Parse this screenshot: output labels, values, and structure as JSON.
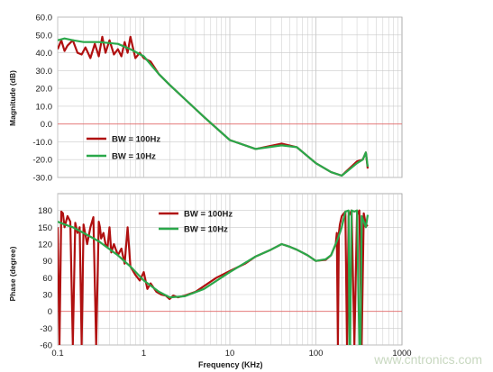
{
  "colors": {
    "series1": "#b01010",
    "series2": "#2aa84a",
    "grid": "#c9c9c9",
    "zero_line": "#e06666"
  },
  "watermark": "www.cntronics.com",
  "chart_data": [
    {
      "type": "line",
      "panel": "magnitude",
      "title": "",
      "xlabel": "",
      "ylabel": "Magnitude (dB)",
      "xscale": "log",
      "xlim": [
        0.1,
        1000
      ],
      "ylim": [
        -30,
        60
      ],
      "yticks": [
        60.0,
        50.0,
        40.0,
        30.0,
        20.0,
        10.0,
        0.0,
        -10.0,
        -20.0,
        -30.0
      ],
      "ytick_labels": [
        "60.0",
        "50.0",
        "40.0",
        "30.0",
        "20.0",
        "10.0",
        "0.0",
        "-10.0",
        "-20.0",
        "-30.0"
      ],
      "grid": true,
      "legend_position": "middle-left",
      "series": [
        {
          "name": "BW = 100Hz",
          "x": [
            0.1,
            0.11,
            0.12,
            0.13,
            0.15,
            0.17,
            0.19,
            0.21,
            0.24,
            0.27,
            0.3,
            0.33,
            0.36,
            0.4,
            0.45,
            0.5,
            0.55,
            0.6,
            0.65,
            0.7,
            0.8,
            0.9,
            1.0,
            1.2,
            1.5,
            2,
            3,
            5,
            10,
            20,
            40,
            60,
            100,
            150,
            200,
            300,
            350,
            380,
            400
          ],
          "y": [
            42,
            47,
            41,
            44,
            47,
            40,
            39,
            43,
            37,
            45,
            38,
            49,
            40,
            47,
            39,
            42,
            38,
            46,
            40,
            49,
            37,
            40,
            37,
            35,
            28,
            22,
            14,
            4,
            -9,
            -14,
            -11,
            -13,
            -22,
            -27,
            -29,
            -21,
            -20,
            -16,
            -25
          ]
        },
        {
          "name": "BW = 10Hz",
          "x": [
            0.1,
            0.12,
            0.15,
            0.2,
            0.3,
            0.5,
            0.7,
            1.0,
            1.5,
            2,
            3,
            5,
            10,
            20,
            40,
            60,
            100,
            150,
            200,
            300,
            350,
            380,
            400
          ],
          "y": [
            47,
            48,
            47,
            46,
            46,
            45,
            42,
            38,
            28,
            22,
            14,
            4,
            -9,
            -14,
            -12,
            -13,
            -22,
            -27,
            -29,
            -22,
            -20,
            -16,
            -24
          ]
        }
      ]
    },
    {
      "type": "line",
      "panel": "phase",
      "title": "",
      "xlabel": "Frequency (KHz)",
      "ylabel": "Phase (degree)",
      "xscale": "log",
      "xlim": [
        0.1,
        1000
      ],
      "ylim": [
        -60,
        210
      ],
      "xticks": [
        0.1,
        1,
        10,
        100,
        1000
      ],
      "xtick_labels": [
        "0.1",
        "1",
        "10",
        "100",
        "1000"
      ],
      "yticks": [
        180,
        150,
        120,
        90,
        60,
        30,
        0,
        -30,
        -60
      ],
      "ytick_labels": [
        "180",
        "150",
        "120",
        "90",
        "60",
        "30",
        "0",
        "-30",
        "-60"
      ],
      "grid": true,
      "legend_position": "top-center",
      "series": [
        {
          "name": "BW = 100Hz",
          "x": [
            0.1,
            0.105,
            0.11,
            0.115,
            0.12,
            0.13,
            0.14,
            0.15,
            0.16,
            0.17,
            0.18,
            0.19,
            0.2,
            0.22,
            0.24,
            0.26,
            0.28,
            0.3,
            0.31,
            0.32,
            0.34,
            0.36,
            0.38,
            0.4,
            0.42,
            0.45,
            0.5,
            0.55,
            0.6,
            0.65,
            0.7,
            0.8,
            0.9,
            1.0,
            1.1,
            1.2,
            1.4,
            1.6,
            1.8,
            2.0,
            2.2,
            2.5,
            3,
            4,
            5,
            7,
            10,
            15,
            20,
            30,
            40,
            50,
            60,
            80,
            100,
            130,
            150,
            170,
            175,
            180,
            185,
            190,
            200,
            220,
            230,
            240,
            260,
            280,
            300,
            320,
            340,
            360,
            380,
            400
          ],
          "y": [
            150,
            -60,
            178,
            175,
            150,
            170,
            160,
            -60,
            158,
            140,
            150,
            -60,
            155,
            120,
            150,
            168,
            -60,
            160,
            150,
            130,
            140,
            120,
            115,
            150,
            105,
            120,
            100,
            112,
            85,
            150,
            80,
            65,
            55,
            70,
            40,
            50,
            35,
            30,
            28,
            22,
            28,
            25,
            28,
            35,
            45,
            60,
            72,
            85,
            98,
            110,
            120,
            115,
            110,
            100,
            90,
            92,
            100,
            120,
            140,
            -60,
            140,
            155,
            170,
            178,
            -60,
            170,
            180,
            -60,
            172,
            180,
            -60,
            175,
            155,
            152
          ]
        },
        {
          "name": "BW = 10Hz",
          "x": [
            0.1,
            0.12,
            0.15,
            0.2,
            0.3,
            0.5,
            0.7,
            1.0,
            1.5,
            2,
            3,
            5,
            10,
            20,
            30,
            40,
            50,
            60,
            80,
            100,
            130,
            150,
            180,
            200,
            220,
            240,
            245,
            250,
            260,
            280,
            300,
            320,
            330,
            340,
            360,
            380,
            400
          ],
          "y": [
            160,
            155,
            150,
            140,
            125,
            100,
            80,
            55,
            35,
            25,
            27,
            40,
            70,
            98,
            110,
            120,
            115,
            110,
            100,
            90,
            93,
            100,
            130,
            150,
            178,
            180,
            -60,
            -60,
            180,
            178,
            180,
            -60,
            -60,
            170,
            160,
            150,
            172
          ]
        }
      ]
    }
  ]
}
